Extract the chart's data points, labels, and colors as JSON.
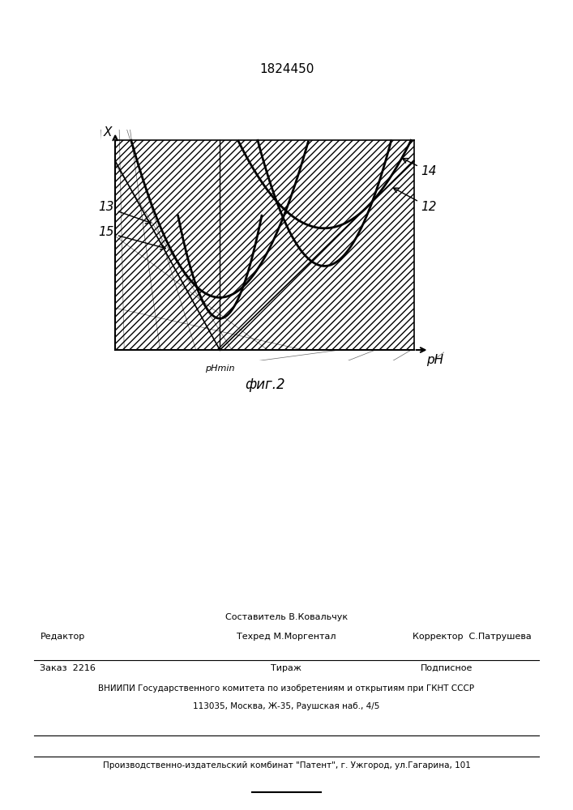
{
  "patent_number": "1824450",
  "fig_label": "фиг.2",
  "x_axis_label": "X",
  "y_axis_label": "pH",
  "ph_min_label": "pHmin",
  "curve12_label": "12",
  "curve14_label": "14",
  "curve13_label": "13",
  "curve15_label": "15",
  "bg_color": "#ffffff",
  "footer_line1": "Составитель В.Ковальчук",
  "footer_line2": "Техред М.Моргентал",
  "footer_editor": "Редактор",
  "footer_corrector": "Корректор  С.Патрушева",
  "footer_order": "Заказ  2216",
  "footer_tirazh": "Тираж",
  "footer_podpisnoe": "Подписное",
  "footer_vnipi": "ВНИИПИ Государственного комитета по изобретениям и открытиям при ГКНТ СССР",
  "footer_address": "113035, Москва, Ж-35, Раушская наб., 4/5",
  "footer_publisher": "Производственно-издательский комбинат \"Патент\", г. Ужгород, ул.Гагарина, 101"
}
